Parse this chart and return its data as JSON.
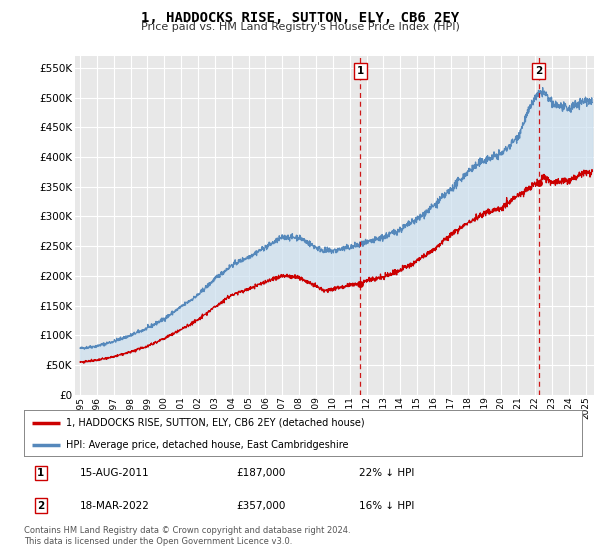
{
  "title": "1, HADDOCKS RISE, SUTTON, ELY, CB6 2EY",
  "subtitle": "Price paid vs. HM Land Registry's House Price Index (HPI)",
  "line1_label": "1, HADDOCKS RISE, SUTTON, ELY, CB6 2EY (detached house)",
  "line2_label": "HPI: Average price, detached house, East Cambridgeshire",
  "line1_color": "#cc0000",
  "line2_color": "#5588bb",
  "fill_color": "#cce0f0",
  "bg_color": "#e8e8e8",
  "grid_color": "#ffffff",
  "marker1_x_year": 2011.625,
  "marker1_y": 187000,
  "marker1_label": "1",
  "marker1_date": "15-AUG-2011",
  "marker1_price": "£187,000",
  "marker1_hpi": "22% ↓ HPI",
  "marker2_x_year": 2022.208,
  "marker2_y": 357000,
  "marker2_label": "2",
  "marker2_date": "18-MAR-2022",
  "marker2_price": "£357,000",
  "marker2_hpi": "16% ↓ HPI",
  "footer": "Contains HM Land Registry data © Crown copyright and database right 2024.\nThis data is licensed under the Open Government Licence v3.0.",
  "ylim": [
    0,
    570000
  ],
  "xlim_start": 1994.7,
  "xlim_end": 2025.5,
  "hpi_anchors_x": [
    1995,
    1996,
    1997,
    1998,
    1999,
    2000,
    2001,
    2002,
    2003,
    2004,
    2005,
    2006,
    2007,
    2008,
    2009,
    2009.5,
    2010,
    2011,
    2012,
    2013,
    2014,
    2015,
    2016,
    2017,
    2018,
    2019,
    2020,
    2021,
    2021.5,
    2022,
    2022.5,
    2023,
    2024,
    2024.5,
    2025
  ],
  "hpi_anchors_y": [
    78000,
    82000,
    90000,
    100000,
    112000,
    128000,
    148000,
    168000,
    195000,
    218000,
    232000,
    248000,
    265000,
    265000,
    248000,
    242000,
    242000,
    248000,
    255000,
    265000,
    278000,
    295000,
    318000,
    345000,
    375000,
    395000,
    405000,
    435000,
    470000,
    500000,
    510000,
    490000,
    480000,
    490000,
    495000
  ],
  "pp_anchors_x": [
    1995,
    1996,
    1997,
    1998,
    1999,
    2000,
    2001,
    2002,
    2003,
    2004,
    2005,
    2006,
    2007,
    2008,
    2009,
    2009.5,
    2010,
    2011,
    2011.625,
    2012,
    2013,
    2014,
    2015,
    2016,
    2017,
    2018,
    2019,
    2020,
    2021,
    2022,
    2022.208,
    2022.5,
    2023,
    2024,
    2024.5,
    2025
  ],
  "pp_anchors_y": [
    55000,
    58000,
    64000,
    72000,
    82000,
    95000,
    110000,
    126000,
    148000,
    168000,
    178000,
    190000,
    200000,
    198000,
    182000,
    175000,
    178000,
    185000,
    187000,
    192000,
    198000,
    210000,
    225000,
    245000,
    268000,
    290000,
    305000,
    315000,
    335000,
    355000,
    357000,
    368000,
    358000,
    360000,
    368000,
    375000
  ]
}
